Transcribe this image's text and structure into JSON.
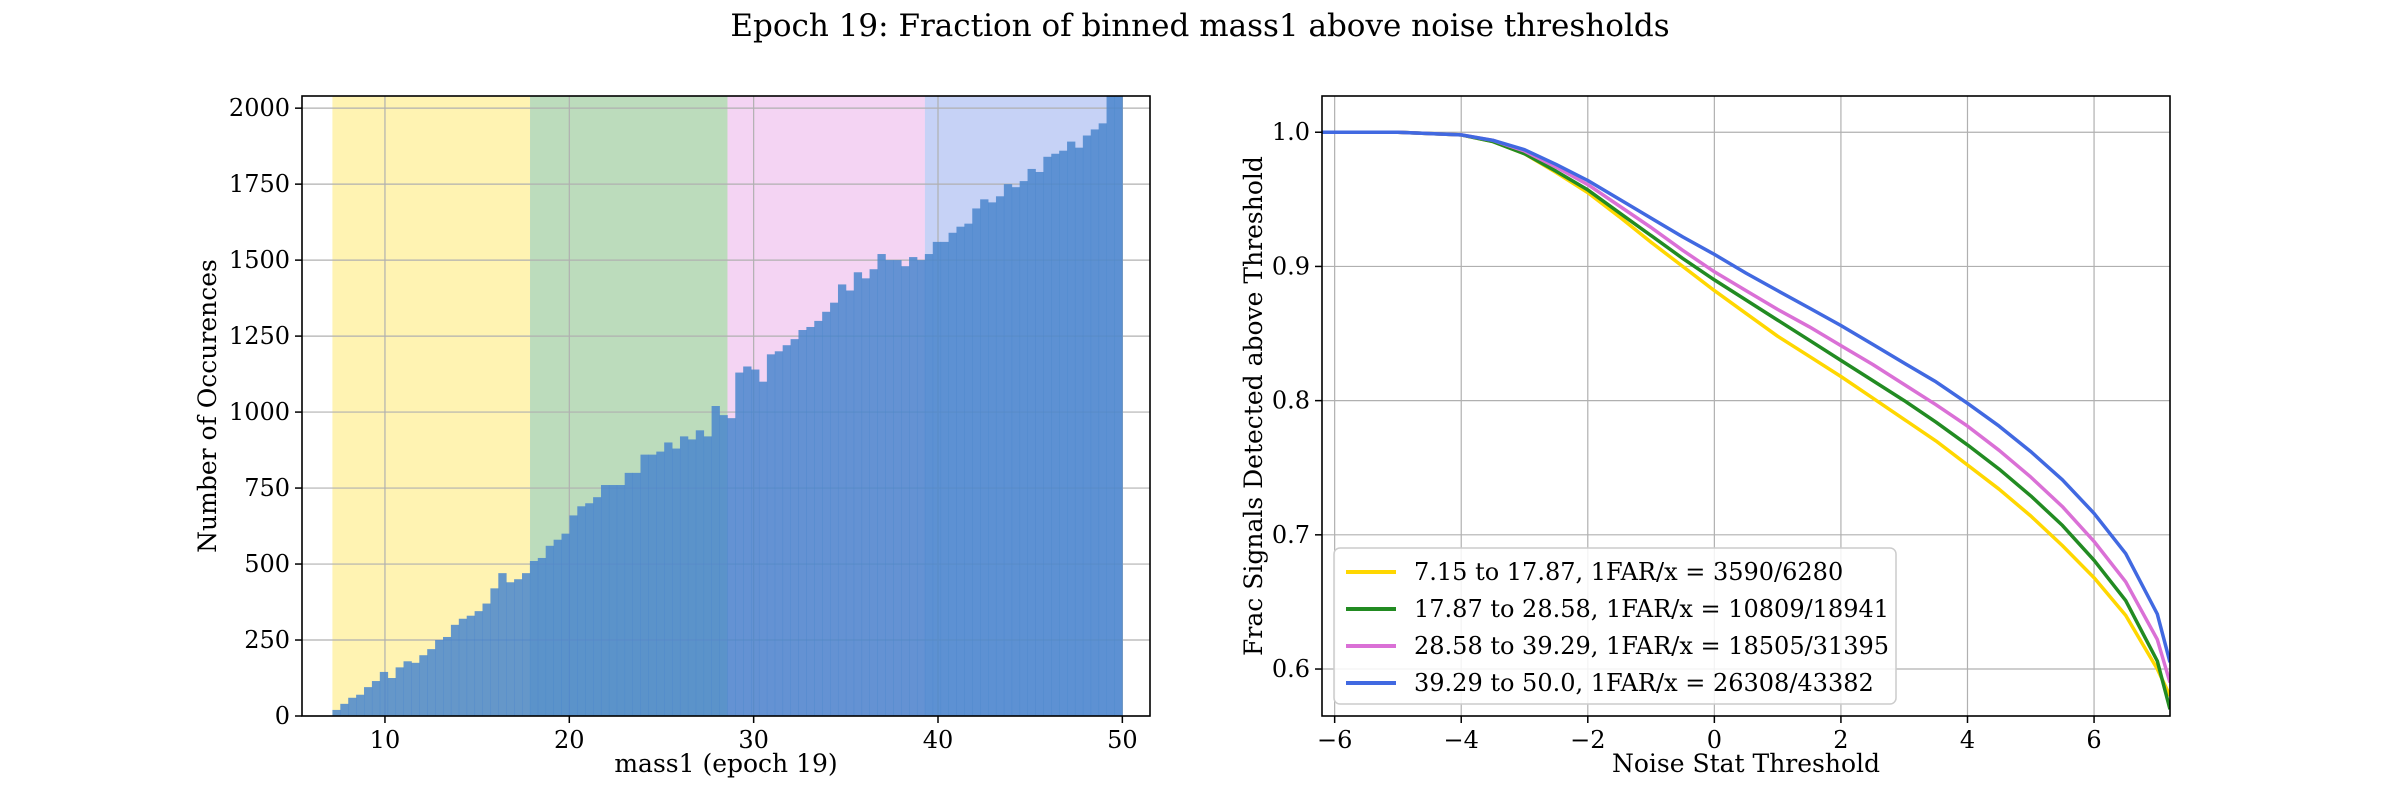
{
  "suptitle": "Epoch 19: Fraction of binned mass1 above noise thresholds",
  "chart_data": [
    {
      "type": "bar",
      "subtype": "histogram",
      "xlabel": "mass1 (epoch 19)",
      "ylabel": "Number of Occurences",
      "xlim": [
        5.5,
        51.5
      ],
      "ylim": [
        0,
        2040
      ],
      "xticks": [
        10,
        20,
        30,
        40,
        50
      ],
      "yticks": [
        0,
        250,
        500,
        750,
        1000,
        1250,
        1500,
        1750,
        2000
      ],
      "grid": true,
      "bin_edges_range": [
        7.15,
        50.0
      ],
      "bin_count": 100,
      "bar_color": "#4a86cc",
      "values": [
        20,
        40,
        60,
        70,
        95,
        115,
        145,
        125,
        160,
        180,
        175,
        200,
        220,
        250,
        260,
        300,
        320,
        330,
        345,
        370,
        420,
        470,
        440,
        450,
        470,
        510,
        520,
        560,
        580,
        600,
        660,
        690,
        700,
        720,
        760,
        760,
        760,
        800,
        800,
        860,
        860,
        870,
        900,
        880,
        920,
        910,
        940,
        920,
        1020,
        990,
        980,
        1130,
        1150,
        1140,
        1100,
        1190,
        1200,
        1220,
        1240,
        1270,
        1280,
        1300,
        1330,
        1360,
        1420,
        1400,
        1460,
        1440,
        1470,
        1520,
        1500,
        1500,
        1480,
        1510,
        1500,
        1520,
        1560,
        1560,
        1590,
        1610,
        1620,
        1670,
        1700,
        1690,
        1710,
        1750,
        1740,
        1760,
        1800,
        1790,
        1840,
        1850,
        1860,
        1890,
        1870,
        1910,
        1930,
        1950,
        2040,
        2040
      ],
      "regions": [
        {
          "range": [
            7.15,
            17.87
          ],
          "color": "#ffd700"
        },
        {
          "range": [
            17.87,
            28.58
          ],
          "color": "#228b22"
        },
        {
          "range": [
            28.58,
            39.29
          ],
          "color": "#da70d6"
        },
        {
          "range": [
            39.29,
            50.0
          ],
          "color": "#4169e1"
        }
      ]
    },
    {
      "type": "line",
      "xlabel": "Noise Stat Threshold",
      "ylabel": "Frac Signals Detected above Threshold",
      "xlim": [
        -6.2,
        7.2
      ],
      "ylim": [
        0.565,
        1.027
      ],
      "xticks": [
        -6,
        -4,
        -2,
        0,
        2,
        4,
        6
      ],
      "xtick_labels": [
        "−6",
        "−4",
        "−2",
        "0",
        "2",
        "4",
        "6"
      ],
      "yticks": [
        0.6,
        0.7,
        0.8,
        0.9,
        1.0
      ],
      "grid": true,
      "legend_position": "lower-left",
      "x": [
        -6.2,
        -5,
        -4,
        -3.5,
        -3,
        -2.5,
        -2,
        -1.5,
        -1,
        -0.5,
        0,
        0.5,
        1,
        1.5,
        2,
        2.5,
        3,
        3.5,
        4,
        4.5,
        5,
        5.5,
        6,
        6.5,
        7,
        7.2
      ],
      "series": [
        {
          "name": "7.15 to 17.87, 1FAR/x = 3590/6280",
          "color": "#ffd700",
          "values": [
            1.0,
            1.0,
            0.998,
            0.993,
            0.984,
            0.97,
            0.955,
            0.937,
            0.918,
            0.9,
            0.882,
            0.865,
            0.848,
            0.833,
            0.818,
            0.802,
            0.786,
            0.77,
            0.752,
            0.734,
            0.714,
            0.692,
            0.668,
            0.64,
            0.6,
            0.58
          ]
        },
        {
          "name": "17.87 to 28.58, 1FAR/x = 10809/18941",
          "color": "#228b22",
          "values": [
            1.0,
            1.0,
            0.998,
            0.993,
            0.984,
            0.971,
            0.957,
            0.94,
            0.923,
            0.906,
            0.89,
            0.875,
            0.86,
            0.845,
            0.83,
            0.815,
            0.8,
            0.784,
            0.767,
            0.749,
            0.729,
            0.707,
            0.681,
            0.651,
            0.606,
            0.57
          ]
        },
        {
          "name": "28.58 to 39.29, 1FAR/x = 18505/31395",
          "color": "#da70d6",
          "values": [
            1.0,
            1.0,
            0.998,
            0.994,
            0.986,
            0.974,
            0.961,
            0.945,
            0.929,
            0.912,
            0.896,
            0.882,
            0.868,
            0.855,
            0.841,
            0.827,
            0.812,
            0.797,
            0.781,
            0.763,
            0.743,
            0.721,
            0.695,
            0.665,
            0.622,
            0.59
          ]
        },
        {
          "name": "39.29 to 50.0, 1FAR/x = 26308/43382",
          "color": "#4169e1",
          "values": [
            1.0,
            1.0,
            0.998,
            0.994,
            0.987,
            0.976,
            0.964,
            0.95,
            0.936,
            0.922,
            0.909,
            0.895,
            0.882,
            0.869,
            0.856,
            0.842,
            0.828,
            0.814,
            0.798,
            0.781,
            0.762,
            0.741,
            0.716,
            0.686,
            0.641,
            0.605
          ]
        }
      ]
    }
  ]
}
